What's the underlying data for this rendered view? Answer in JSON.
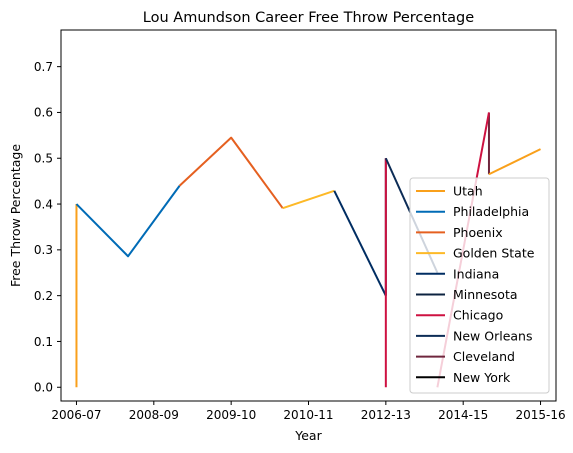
{
  "chart_data": {
    "type": "line",
    "title": "Lou Amundson Career Free Throw Percentage",
    "xlabel": "Year",
    "ylabel": "Free Throw Percentage",
    "xlim": [
      -0.3,
      9.3
    ],
    "ylim": [
      -0.03,
      0.78
    ],
    "x_ticks": [
      {
        "x": 0,
        "label": "2006-07"
      },
      {
        "x": 1.5,
        "label": "2008-09"
      },
      {
        "x": 3,
        "label": "2009-10"
      },
      {
        "x": 4.5,
        "label": "2010-11"
      },
      {
        "x": 6,
        "label": "2012-13"
      },
      {
        "x": 7.5,
        "label": "2014-15"
      },
      {
        "x": 9,
        "label": "2015-16"
      }
    ],
    "y_ticks": [
      0.0,
      0.1,
      0.2,
      0.3,
      0.4,
      0.5,
      0.6,
      0.7
    ],
    "y_tick_labels": [
      "0.0",
      "0.1",
      "0.2",
      "0.3",
      "0.4",
      "0.5",
      "0.6",
      "0.7"
    ],
    "legend_position": "lower-right",
    "series": [
      {
        "name": "Utah",
        "color": "#F9A01B",
        "points": [
          [
            0,
            0.0
          ],
          [
            0,
            0.4
          ]
        ]
      },
      {
        "name": "Philadelphia",
        "color": "#006BB6",
        "points": [
          [
            0,
            0.4
          ],
          [
            1,
            0.286
          ],
          [
            2,
            0.44
          ]
        ]
      },
      {
        "name": "Phoenix",
        "color": "#E56020",
        "points": [
          [
            2,
            0.44
          ],
          [
            3,
            0.545
          ],
          [
            4,
            0.391
          ]
        ]
      },
      {
        "name": "Golden State",
        "color": "#FDB927",
        "points": [
          [
            4,
            0.391
          ],
          [
            5,
            0.429
          ]
        ]
      },
      {
        "name": "Indiana",
        "color": "#002D62",
        "points": [
          [
            5,
            0.429
          ],
          [
            6,
            0.2
          ]
        ]
      },
      {
        "name": "Minnesota",
        "color": "#0C2340",
        "points": [
          [
            6,
            0.2
          ],
          [
            6,
            0.5
          ]
        ]
      },
      {
        "name": "Chicago",
        "color": "#CE1141",
        "points": [
          [
            6,
            0.5
          ],
          [
            6,
            0.0
          ]
        ]
      },
      {
        "name": "New Orleans",
        "color": "#0C2C56",
        "points": [
          [
            6,
            0.5
          ],
          [
            7,
            0.25
          ]
        ]
      },
      {
        "name": "Cleveland",
        "color": "#6F263D",
        "points": [
          [
            8,
            0.6
          ],
          [
            8,
            0.465
          ]
        ]
      },
      {
        "name": "New York",
        "color": "#000000",
        "points": []
      },
      {
        "name": "",
        "color": "#CE1141",
        "points": [
          [
            7,
            0.0
          ],
          [
            8,
            0.6
          ]
        ]
      },
      {
        "name": "",
        "color": "#F9A01B",
        "points": [
          [
            8,
            0.465
          ],
          [
            9,
            0.52
          ]
        ]
      }
    ]
  }
}
